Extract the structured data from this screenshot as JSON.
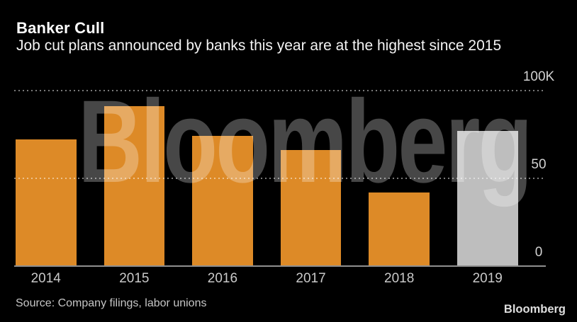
{
  "header": {
    "title": "Banker Cull",
    "subtitle": "Job cut plans announced by banks this year are at the highest since 2015"
  },
  "chart_data": {
    "type": "bar",
    "title": "Banker Cull",
    "subtitle": "Job cut plans announced by banks this year are at the highest since 2015",
    "categories": [
      "2014",
      "2015",
      "2016",
      "2017",
      "2018",
      "2019"
    ],
    "values": [
      72,
      91,
      74,
      66,
      42,
      77
    ],
    "unit": "thousands of job cuts",
    "ylim": [
      0,
      100
    ],
    "y_ticks": [
      {
        "value": 0,
        "label": "0"
      },
      {
        "value": 50,
        "label": "50"
      },
      {
        "value": 100,
        "label": "100K"
      }
    ],
    "xlabel": "",
    "ylabel": "",
    "grid": "horizontal dotted, drawn over bars",
    "legend": "none",
    "bar_colors": [
      "#dd8a27",
      "#dd8a27",
      "#dd8a27",
      "#dd8a27",
      "#dd8a27",
      "#bebebe"
    ],
    "highlight_note": "2019 bar shown in gray, prior years in orange"
  },
  "watermark": "Bloomberg",
  "footer": {
    "source": "Source: Company filings, labor unions",
    "logo": "Bloomberg"
  },
  "colors": {
    "background": "#000000",
    "bar_orange": "#dd8a27",
    "bar_gray": "#bebebe",
    "title_text": "#ffffff",
    "axis_text": "#d2d2d2",
    "source_text": "#c6c6c6",
    "axis_line": "#8f8f8f",
    "gridline": "rgba(255,255,255,0.48)",
    "watermark": "rgba(255,255,255,0.28)"
  }
}
